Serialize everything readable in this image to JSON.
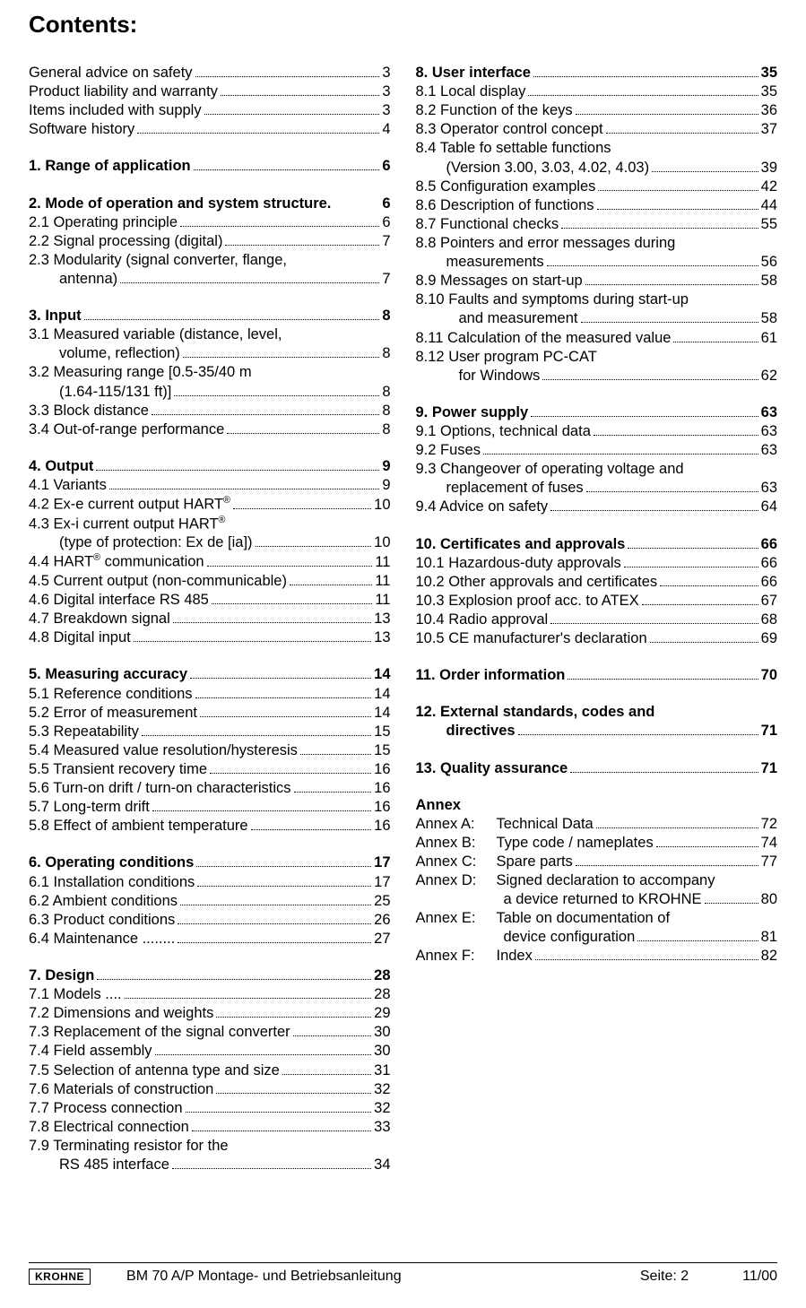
{
  "title": "Contents:",
  "left": [
    {
      "type": "entry",
      "label": "General advice on safety",
      "page": "3"
    },
    {
      "type": "entry",
      "label": "Product liability and warranty",
      "page": "3"
    },
    {
      "type": "entry",
      "label": "Items included with supply",
      "page": "3"
    },
    {
      "type": "entry",
      "label": "Software history",
      "page": "4"
    },
    {
      "type": "gap"
    },
    {
      "type": "entry",
      "bold": true,
      "label": "1. Range of application",
      "page": "6"
    },
    {
      "type": "gap"
    },
    {
      "type": "entry",
      "bold": true,
      "label": "2. Mode of operation and system structure.",
      "nodots": true,
      "page": "6"
    },
    {
      "type": "entry",
      "label": "2.1 Operating principle",
      "page": "6"
    },
    {
      "type": "entry",
      "label": "2.2 Signal processing (digital)",
      "page": "7"
    },
    {
      "type": "wrap",
      "label": "2.3 Modularity (signal converter, flange,",
      "sub": "antenna)",
      "page": "7"
    },
    {
      "type": "gap"
    },
    {
      "type": "entry",
      "bold": true,
      "label": "3. Input",
      "page": "8"
    },
    {
      "type": "wrap",
      "label": "3.1 Measured variable (distance, level,",
      "sub": "volume, reflection)",
      "page": "8"
    },
    {
      "type": "wrap",
      "label": "3.2 Measuring range [0.5-35/40 m",
      "sub": "(1.64-115/131 ft)]",
      "page": "8"
    },
    {
      "type": "entry",
      "label": "3.3 Block distance",
      "page": "8"
    },
    {
      "type": "entry",
      "label": "3.4 Out-of-range performance",
      "page": "8"
    },
    {
      "type": "gap"
    },
    {
      "type": "entry",
      "bold": true,
      "label": "4. Output",
      "page": "9"
    },
    {
      "type": "entry",
      "label": "4.1 Variants",
      "page": "9"
    },
    {
      "type": "entry",
      "label": "4.2 Ex-e current output HART",
      "sup": "®",
      "page": "10"
    },
    {
      "type": "wrapsup",
      "label": "4.3 Ex-i current output HART",
      "sup": "®",
      "sub": "(type of protection: Ex de [ia])",
      "page": "10"
    },
    {
      "type": "entry",
      "label": "4.4 HART",
      "sup": "®",
      "tail": " communication",
      "page": "11"
    },
    {
      "type": "entry",
      "label": "4.5 Current output (non-communicable)",
      "page": "11"
    },
    {
      "type": "entry",
      "label": "4.6 Digital interface RS 485",
      "page": "11"
    },
    {
      "type": "entry",
      "label": "4.7 Breakdown signal",
      "page": "13"
    },
    {
      "type": "entry",
      "label": "4.8 Digital input",
      "page": "13"
    },
    {
      "type": "gap"
    },
    {
      "type": "entry",
      "bold": true,
      "label": "5. Measuring accuracy",
      "page": "14"
    },
    {
      "type": "entry",
      "label": "5.1 Reference conditions",
      "page": "14"
    },
    {
      "type": "entry",
      "label": "5.2 Error of measurement",
      "page": "14"
    },
    {
      "type": "entry",
      "label": "5.3 Repeatability",
      "page": "15"
    },
    {
      "type": "entry",
      "label": "5.4 Measured value resolution/hysteresis",
      "page": "15"
    },
    {
      "type": "entry",
      "label": "5.5 Transient recovery time",
      "page": "16"
    },
    {
      "type": "entry",
      "label": "5.6 Turn-on drift / turn-on characteristics",
      "page": "16"
    },
    {
      "type": "entry",
      "label": "5.7 Long-term drift",
      "page": "16"
    },
    {
      "type": "entry",
      "label": "5.8 Effect of ambient temperature",
      "page": "16"
    },
    {
      "type": "gap"
    },
    {
      "type": "entry",
      "bold": true,
      "label": "6. Operating conditions",
      "page": "17"
    },
    {
      "type": "entry",
      "label": "6.1 Installation conditions",
      "page": "17"
    },
    {
      "type": "entry",
      "label": "6.2 Ambient conditions",
      "page": "25"
    },
    {
      "type": "entry",
      "label": "6.3 Product conditions",
      "page": "26"
    },
    {
      "type": "entry",
      "label": "6.4 Maintenance ........",
      "page": "27"
    },
    {
      "type": "gap"
    },
    {
      "type": "entry",
      "bold": true,
      "label": "7. Design",
      "page": "28"
    },
    {
      "type": "entry",
      "label": "7.1 Models  ....",
      "page": "28"
    },
    {
      "type": "entry",
      "label": "7.2 Dimensions and weights",
      "page": "29"
    },
    {
      "type": "entry",
      "label": "7.3 Replacement of the signal converter",
      "page": "30"
    },
    {
      "type": "entry",
      "label": "7.4 Field assembly",
      "page": "30"
    },
    {
      "type": "entry",
      "label": "7.5 Selection of antenna type and size",
      "page": "31"
    },
    {
      "type": "entry",
      "label": "7.6 Materials of construction",
      "page": "32"
    },
    {
      "type": "entry",
      "label": "7.7 Process connection",
      "page": "32"
    },
    {
      "type": "entry",
      "label": "7.8 Electrical connection",
      "page": "33"
    },
    {
      "type": "wrap",
      "label": "7.9 Terminating resistor for the",
      "sub": "RS 485 interface",
      "page": "34"
    }
  ],
  "right": [
    {
      "type": "entry",
      "bold": true,
      "label": "8. User interface",
      "page": "35"
    },
    {
      "type": "entry",
      "label": "8.1  Local display",
      "page": "35"
    },
    {
      "type": "entry",
      "label": "8.2  Function of the keys",
      "page": "36"
    },
    {
      "type": "entry",
      "label": "8.3  Operator control concept",
      "page": "37"
    },
    {
      "type": "wrap",
      "label": "8.4  Table fo settable functions",
      "sub": "(Version 3.00, 3.03, 4.02, 4.03)",
      "page": "39"
    },
    {
      "type": "entry",
      "label": "8.5  Configuration examples",
      "page": "42"
    },
    {
      "type": "entry",
      "label": "8.6  Description of functions",
      "page": "44"
    },
    {
      "type": "entry",
      "label": "8.7  Functional checks",
      "page": "55"
    },
    {
      "type": "wrap",
      "label": "8.8  Pointers and error messages during",
      "sub": "measurements",
      "page": "56"
    },
    {
      "type": "entry",
      "label": "8.9  Messages on start-up",
      "page": "58"
    },
    {
      "type": "wrap",
      "label": "8.10 Faults and symptoms during start-up",
      "sub": "and measurement",
      "indent": "indent2",
      "page": "58"
    },
    {
      "type": "entry",
      "label": "8.11 Calculation of the measured value",
      "page": "61"
    },
    {
      "type": "wrap",
      "label": "8.12 User program PC-CAT",
      "sub": "for Windows",
      "indent": "indent2",
      "page": "62"
    },
    {
      "type": "gap"
    },
    {
      "type": "entry",
      "bold": true,
      "label": "9. Power supply",
      "page": "63"
    },
    {
      "type": "entry",
      "label": "9.1  Options, technical data",
      "page": "63"
    },
    {
      "type": "entry",
      "label": "9.2  Fuses",
      "page": "63"
    },
    {
      "type": "wrap",
      "label": "9.3  Changeover of operating voltage and",
      "sub": "replacement of fuses",
      "page": "63"
    },
    {
      "type": "entry",
      "label": "9.4  Advice on safety",
      "page": "64"
    },
    {
      "type": "gap"
    },
    {
      "type": "entry",
      "bold": true,
      "label": "10. Certificates and approvals",
      "page": "66"
    },
    {
      "type": "entry",
      "label": "10.1 Hazardous-duty approvals",
      "page": "66"
    },
    {
      "type": "entry",
      "label": "10.2 Other approvals and certificates",
      "page": "66"
    },
    {
      "type": "entry",
      "label": "10.3 Explosion proof acc. to ATEX",
      "page": "67"
    },
    {
      "type": "entry",
      "label": "10.4 Radio approval",
      "page": "68"
    },
    {
      "type": "entry",
      "label": "10.5 CE manufacturer's declaration",
      "page": "69"
    },
    {
      "type": "gap"
    },
    {
      "type": "entry",
      "bold": true,
      "label": "11. Order information",
      "page": "70"
    },
    {
      "type": "gap"
    },
    {
      "type": "wrap",
      "bold": true,
      "label": "12. External standards, codes and",
      "sub": "directives",
      "page": "71"
    },
    {
      "type": "gap"
    },
    {
      "type": "entry",
      "bold": true,
      "label": "13. Quality assurance",
      "page": "71"
    },
    {
      "type": "gap"
    },
    {
      "type": "plain",
      "bold": true,
      "label": "Annex"
    },
    {
      "type": "annex",
      "key": "Annex A:",
      "label": "Technical Data",
      "page": "72"
    },
    {
      "type": "annex",
      "key": "Annex B:",
      "label": "Type code / nameplates",
      "page": "74"
    },
    {
      "type": "annex",
      "key": "Annex C:",
      "label": "Spare parts",
      "page": "77"
    },
    {
      "type": "annexwrap",
      "key": "Annex D:",
      "label": "Signed declaration to accompany",
      "sub": "a device returned to KROHNE",
      "page": "80"
    },
    {
      "type": "annexwrap",
      "key": "Annex E:",
      "label": "Table on documentation of",
      "sub": "device configuration",
      "page": "81"
    },
    {
      "type": "annex",
      "key": "Annex F:",
      "label": "Index",
      "page": "82"
    }
  ],
  "footer": {
    "logo": "KROHNE",
    "left": "BM 70 A/P Montage- und Betriebsanleitung",
    "center": "Seite: 2",
    "right": "11/00"
  }
}
